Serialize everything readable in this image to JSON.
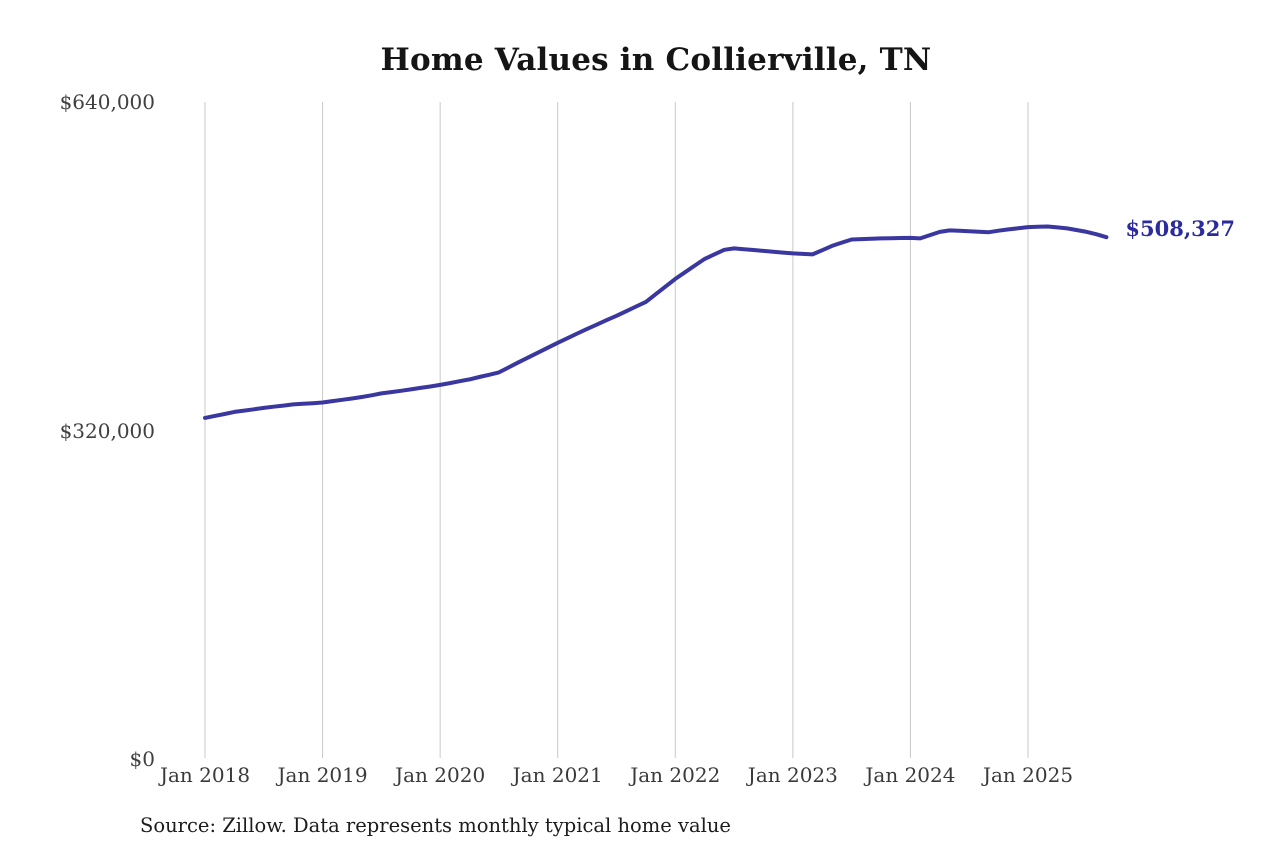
{
  "title": "Home Values in Collierville, TN",
  "source_note": "Source: Zillow. Data represents monthly typical home value",
  "end_value_label": "$508,327",
  "colors": {
    "line": "#3A37A0",
    "end_label": "#2B2A9E",
    "grid": "#C9C9C9",
    "axis_text": "#3a3a3a",
    "title_text": "#151515",
    "background": "#FFFFFF"
  },
  "y_axis": {
    "ticks": [
      {
        "label": "$640,000",
        "value": 640000
      },
      {
        "label": "$320,000",
        "value": 320000
      },
      {
        "label": "$0",
        "value": 0
      }
    ]
  },
  "x_axis": {
    "ticks": [
      {
        "label": "Jan 2018",
        "month_index": 0
      },
      {
        "label": "Jan 2019",
        "month_index": 12
      },
      {
        "label": "Jan 2020",
        "month_index": 24
      },
      {
        "label": "Jan 2021",
        "month_index": 36
      },
      {
        "label": "Jan 2022",
        "month_index": 48
      },
      {
        "label": "Jan 2023",
        "month_index": 60
      },
      {
        "label": "Jan 2024",
        "month_index": 72
      },
      {
        "label": "Jan 2025",
        "month_index": 84
      }
    ]
  },
  "chart_data": {
    "type": "line",
    "title": "Home Values in Collierville, TN",
    "series_name": "Monthly typical home value",
    "xlabel": "",
    "ylabel": "",
    "ylim": [
      0,
      640000
    ],
    "grid": "vertical-only",
    "legend": "none",
    "line_color": "#3A37A0",
    "last_point_label": "$508,327",
    "last_point_value": 508327,
    "x": [
      "2018-01",
      "2018-02",
      "2018-03",
      "2018-04",
      "2018-05",
      "2018-06",
      "2018-07",
      "2018-08",
      "2018-09",
      "2018-10",
      "2018-11",
      "2018-12",
      "2019-01",
      "2019-02",
      "2019-03",
      "2019-04",
      "2019-05",
      "2019-06",
      "2019-07",
      "2019-08",
      "2019-09",
      "2019-10",
      "2019-11",
      "2019-12",
      "2020-01",
      "2020-02",
      "2020-03",
      "2020-04",
      "2020-05",
      "2020-06",
      "2020-07",
      "2020-08",
      "2020-09",
      "2020-10",
      "2020-11",
      "2020-12",
      "2021-01",
      "2021-02",
      "2021-03",
      "2021-04",
      "2021-05",
      "2021-06",
      "2021-07",
      "2021-08",
      "2021-09",
      "2021-10",
      "2021-11",
      "2021-12",
      "2022-01",
      "2022-02",
      "2022-03",
      "2022-04",
      "2022-05",
      "2022-06",
      "2022-07",
      "2022-08",
      "2022-09",
      "2022-10",
      "2022-11",
      "2022-12",
      "2023-01",
      "2023-02",
      "2023-03",
      "2023-04",
      "2023-05",
      "2023-06",
      "2023-07",
      "2023-08",
      "2023-09",
      "2023-10",
      "2023-11",
      "2023-12",
      "2024-01",
      "2024-02",
      "2024-03",
      "2024-04",
      "2024-05",
      "2024-06",
      "2024-07",
      "2024-08",
      "2024-09",
      "2024-10",
      "2024-11",
      "2024-12",
      "2025-01",
      "2025-02",
      "2025-03",
      "2025-04",
      "2025-05",
      "2025-06",
      "2025-07",
      "2025-08",
      "2025-09"
    ],
    "values": [
      332300,
      334200,
      336100,
      338100,
      339400,
      340700,
      342000,
      343200,
      344300,
      345400,
      346000,
      346600,
      347300,
      348600,
      349900,
      351200,
      352600,
      354300,
      356100,
      357400,
      358700,
      360000,
      361500,
      362900,
      364400,
      366200,
      368000,
      369800,
      372100,
      374300,
      376600,
      381500,
      386400,
      391200,
      395900,
      400700,
      405400,
      409900,
      414500,
      419000,
      423200,
      427500,
      431700,
      436200,
      440800,
      445300,
      452800,
      460200,
      467700,
      474200,
      480700,
      487200,
      491600,
      496000,
      497400,
      496600,
      495800,
      495000,
      494200,
      493300,
      492500,
      492000,
      491500,
      495600,
      499800,
      503000,
      506100,
      506400,
      506800,
      507100,
      507300,
      507500,
      507600,
      507100,
      510300,
      513500,
      514900,
      514500,
      514000,
      513600,
      513200,
      514600,
      515900,
      517000,
      518100,
      518400,
      518700,
      517800,
      516900,
      515200,
      513500,
      511100,
      508327
    ]
  }
}
